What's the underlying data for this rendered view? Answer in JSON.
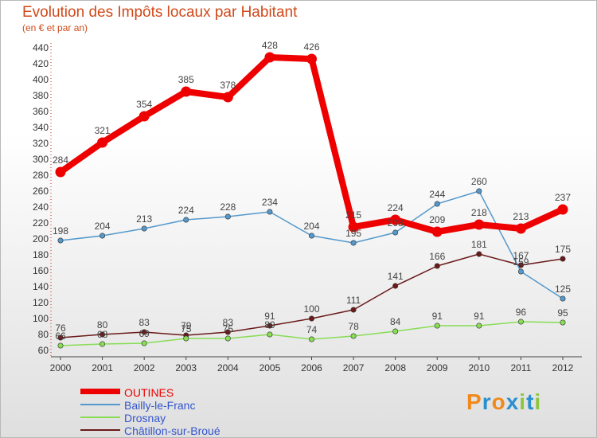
{
  "title": "Evolution des Impôts locaux par Habitant",
  "subtitle": "(en € et par an)",
  "logo": {
    "text": "Proxiti",
    "letters": [
      "P",
      "r",
      "o",
      "x",
      "i",
      "t",
      "i"
    ],
    "colors": [
      "#f08a1c",
      "#2a8fd0",
      "#f08a1c",
      "#2a8fd0",
      "#8cc63f",
      "#2a8fd0",
      "#8cc63f"
    ]
  },
  "chart_data": {
    "type": "line",
    "title": "Evolution des Impôts locaux par Habitant",
    "subtitle": "(en € et par an)",
    "x": [
      2000,
      2001,
      2002,
      2003,
      2004,
      2005,
      2006,
      2007,
      2008,
      2009,
      2010,
      2011,
      2012
    ],
    "ylim": [
      60,
      440
    ],
    "yticks": [
      60,
      80,
      100,
      120,
      140,
      160,
      180,
      200,
      220,
      240,
      260,
      280,
      300,
      320,
      340,
      360,
      380,
      400,
      420,
      440
    ],
    "grid": false,
    "legend_position": "bottom-left",
    "series": [
      {
        "name": "OUTINES",
        "color": "#ee0000",
        "values": [
          284,
          321,
          354,
          385,
          378,
          428,
          426,
          215,
          224,
          209,
          218,
          213,
          237
        ]
      },
      {
        "name": "Bailly-le-Franc",
        "color": "#5599cc",
        "values": [
          198,
          204,
          213,
          224,
          228,
          234,
          204,
          195,
          208,
          244,
          260,
          159,
          125
        ]
      },
      {
        "name": "Drosnay",
        "color": "#88dd55",
        "values": [
          66,
          68,
          69,
          75,
          75,
          80,
          74,
          78,
          84,
          91,
          91,
          96,
          95
        ]
      },
      {
        "name": "Châtillon-sur-Broué",
        "color": "#6b1a1a",
        "values": [
          76,
          80,
          83,
          79,
          83,
          91,
          100,
          111,
          141,
          166,
          181,
          167,
          175
        ]
      }
    ]
  }
}
